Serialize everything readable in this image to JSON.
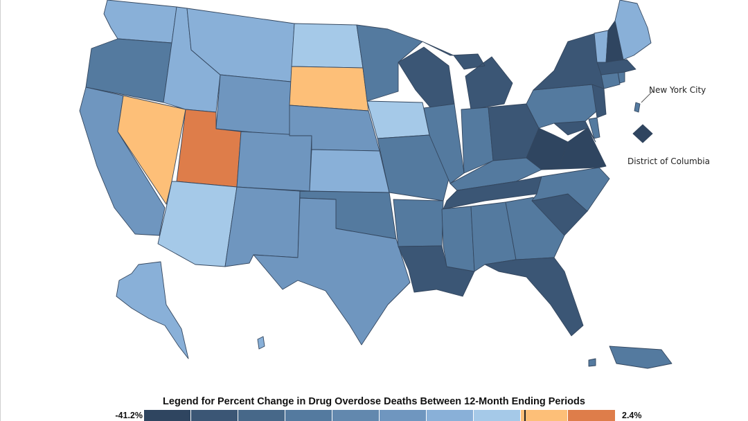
{
  "map": {
    "callouts": {
      "new_york_city": "New York City",
      "district_of_columbia": "District of Columbia"
    },
    "colors": {
      "darkest": "#2f4560",
      "dark": "#3b5675",
      "mid_dark": "#476889",
      "mid": "#547a9f",
      "mid_light": "#6f96bf",
      "light": "#89b0d8",
      "lighter": "#a5c9e8",
      "pale": "#b4d4ee",
      "orange_light": "#fdbf78",
      "orange_dark": "#de7d4a"
    }
  },
  "legend": {
    "title": "Legend for Percent Change in Drug Overdose Deaths Between 12-Month Ending Periods",
    "min_label": "-41.2%",
    "max_label": "2.4%",
    "swatches": [
      "#2f4560",
      "#3b5675",
      "#476889",
      "#547a9f",
      "#6288ae",
      "#6f96bf",
      "#89b0d8",
      "#a5c9e8",
      "#fdbf78",
      "#de7d4a"
    ]
  }
}
